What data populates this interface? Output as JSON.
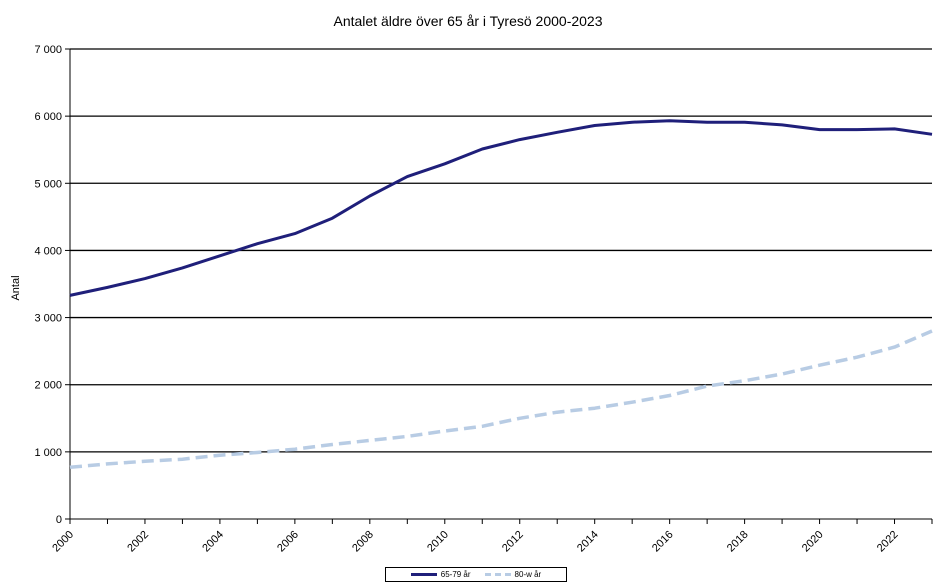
{
  "chart_data": {
    "type": "line",
    "title": "Antalet äldre över 65 år i Tyresö 2000-2023",
    "ylabel": "Antal",
    "xlabel": "",
    "ylim": [
      0,
      7000
    ],
    "xlim": [
      2000,
      2023
    ],
    "y_ticks": [
      0,
      1000,
      2000,
      3000,
      4000,
      5000,
      6000,
      7000
    ],
    "y_tick_labels": [
      "0",
      "1 000",
      "2 000",
      "3 000",
      "4 000",
      "5 000",
      "6 000",
      "7 000"
    ],
    "x_ticks": [
      2000,
      2002,
      2004,
      2006,
      2008,
      2010,
      2012,
      2014,
      2016,
      2018,
      2020,
      2022
    ],
    "x_tick_labels": [
      "2000",
      "2002",
      "2004",
      "2006",
      "2008",
      "2010",
      "2012",
      "2014",
      "2016",
      "2018",
      "2020",
      "2022"
    ],
    "grid": "horizontal",
    "legend_position": "bottom",
    "x": [
      2000,
      2001,
      2002,
      2003,
      2004,
      2005,
      2006,
      2007,
      2008,
      2009,
      2010,
      2011,
      2012,
      2013,
      2014,
      2015,
      2016,
      2017,
      2018,
      2019,
      2020,
      2021,
      2022,
      2023
    ],
    "series": [
      {
        "name": "65-79 år",
        "color": "#1f1f7a",
        "style": "solid",
        "values": [
          3330,
          3450,
          3580,
          3740,
          3920,
          4100,
          4250,
          4480,
          4810,
          5100,
          5290,
          5510,
          5650,
          5760,
          5860,
          5910,
          5930,
          5910,
          5910,
          5870,
          5800,
          5800,
          5810,
          5730
        ]
      },
      {
        "name": "80-w år",
        "color": "#b8cce4",
        "style": "dashed",
        "values": [
          770,
          820,
          860,
          890,
          950,
          990,
          1040,
          1110,
          1170,
          1230,
          1310,
          1380,
          1500,
          1590,
          1650,
          1740,
          1840,
          1980,
          2060,
          2160,
          2290,
          2410,
          2560,
          2800
        ]
      }
    ]
  }
}
